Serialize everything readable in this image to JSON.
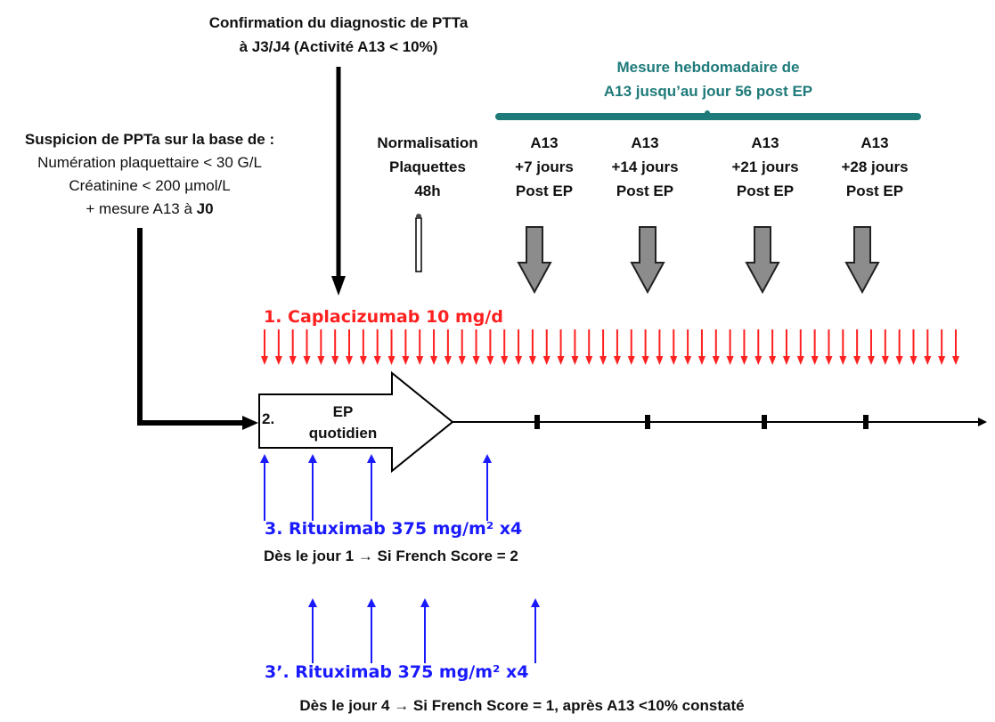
{
  "colors": {
    "red": "#ff2020",
    "blue": "#1a1aff",
    "teal": "#1f7a7a",
    "gray": "#8c8c8c",
    "black": "#000000"
  },
  "confirmation": {
    "line1": "Confirmation du diagnostic de PTTa",
    "line2": "à J3/J4 (Activité A13 < 10%)"
  },
  "weekly": {
    "line1": "Mesure hebdomadaire de",
    "line2": "A13 jusqu’au jour 56 post EP"
  },
  "suspicion": {
    "title": "Suspicion de PPTa sur la base de :",
    "line1": "Numération plaquettaire < 30 G/L",
    "line2": "Créatinine < 200 µmol/L",
    "line3_prefix": "+ mesure A13 à ",
    "line3_bold": "J0"
  },
  "normalisation": {
    "line1": "Normalisation",
    "line2": "Plaquettes",
    "line3": "48h"
  },
  "a13_timepoints": [
    {
      "line1": "A13",
      "line2": "+7 jours",
      "line3": "Post EP"
    },
    {
      "line1": "A13",
      "line2": "+14 jours",
      "line3": "Post EP"
    },
    {
      "line1": "A13",
      "line2": "+21 jours",
      "line3": "Post EP"
    },
    {
      "line1": "A13",
      "line2": "+28 jours",
      "line3": "Post EP"
    }
  ],
  "caplacizumab": {
    "label": "1. Caplacizumab 10 mg/d"
  },
  "ep": {
    "number": "2.",
    "line1": "EP",
    "line2": "quotidien"
  },
  "rituximab1": {
    "label": "3. Rituximab 375 mg/m² x4",
    "note": "Dès le jour 1 → Si French Score = 2"
  },
  "rituximab2": {
    "label": "3’. Rituximab 375 mg/m² x4",
    "note": "Dès le jour 4 → Si French Score = 1, après A13 <10% constaté"
  }
}
